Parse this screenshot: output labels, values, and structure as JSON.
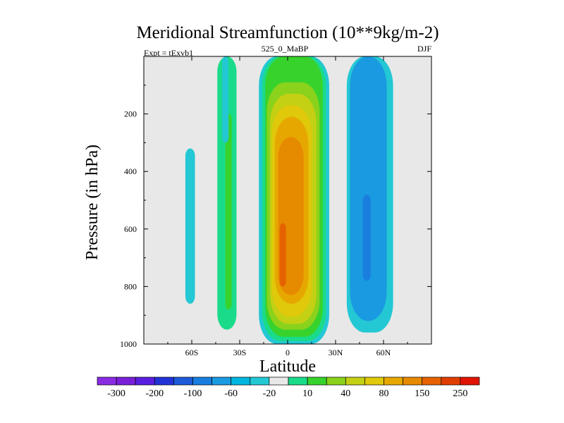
{
  "chart_data": {
    "type": "contour",
    "title": "Meridional Streamfunction (10**9kg/m-2)",
    "left_label": "Expt = tExvb1",
    "center_label": "525_0_MaBP",
    "right_label": "DJF",
    "xlabel": "Latitude",
    "ylabel": "Pressure (in hPa)",
    "xlim": [
      -90,
      90
    ],
    "ylim": [
      1000,
      0
    ],
    "x_ticks": [
      {
        "value": -60,
        "label": "60S"
      },
      {
        "value": -30,
        "label": "30S"
      },
      {
        "value": 0,
        "label": "0"
      },
      {
        "value": 30,
        "label": "30N"
      },
      {
        "value": 60,
        "label": "60N"
      }
    ],
    "y_ticks": [
      {
        "value": 200,
        "label": "200"
      },
      {
        "value": 400,
        "label": "400"
      },
      {
        "value": 600,
        "label": "600"
      },
      {
        "value": 800,
        "label": "800"
      },
      {
        "value": 1000,
        "label": "1000"
      }
    ],
    "background_color": "#e8e8e8",
    "colorbar": {
      "colors": [
        "#8a2be2",
        "#7a1fd8",
        "#5a1ee0",
        "#2233d6",
        "#1d5ad8",
        "#1a7edf",
        "#1a9ae0",
        "#00b5de",
        "#23c8d4",
        "#e8e8e8",
        "#1adb8a",
        "#38d22d",
        "#8ad21c",
        "#c4d014",
        "#e0c80a",
        "#e6a800",
        "#e68a00",
        "#e66200",
        "#e03e00",
        "#e01400"
      ],
      "labels": [
        {
          "after_index": 0,
          "text": "-300"
        },
        {
          "after_index": 2,
          "text": "-200"
        },
        {
          "after_index": 4,
          "text": "-100"
        },
        {
          "after_index": 6,
          "text": "-60"
        },
        {
          "after_index": 8,
          "text": "-20"
        },
        {
          "after_index": 10,
          "text": "10"
        },
        {
          "after_index": 12,
          "text": "40"
        },
        {
          "after_index": 14,
          "text": "80"
        },
        {
          "after_index": 16,
          "text": "150"
        },
        {
          "after_index": 18,
          "text": "250"
        }
      ]
    },
    "cells": [
      {
        "name": "sh-polar-weak-cell",
        "level_color": "#23c8d4",
        "lat": [
          -64,
          -58
        ],
        "p": [
          320,
          860
        ]
      },
      {
        "name": "sh-ferrel-outer",
        "level_color": "#1adb8a",
        "lat": [
          -44,
          -32
        ],
        "p": [
          0,
          950
        ]
      },
      {
        "name": "sh-ferrel-inner",
        "level_color": "#38d22d",
        "lat": [
          -39,
          -35
        ],
        "p": [
          200,
          880
        ]
      },
      {
        "name": "sh-ferrel-top",
        "level_color": "#23c8d4",
        "lat": [
          -41,
          -37
        ],
        "p": [
          0,
          300
        ]
      },
      {
        "name": "hadley-outline",
        "level_color": "#23c8d4",
        "lat": [
          -18,
          26
        ],
        "p": [
          0,
          1000
        ]
      },
      {
        "name": "hadley-level-10",
        "level_color": "#1adb8a",
        "lat": [
          -16,
          24
        ],
        "p": [
          0,
          990
        ]
      },
      {
        "name": "hadley-level-40",
        "level_color": "#38d22d",
        "lat": [
          -14,
          22
        ],
        "p": [
          0,
          975
        ]
      },
      {
        "name": "hadley-level-80",
        "level_color": "#8ad21c",
        "lat": [
          -13,
          20
        ],
        "p": [
          90,
          950
        ]
      },
      {
        "name": "hadley-level-100",
        "level_color": "#c4d014",
        "lat": [
          -11,
          18
        ],
        "p": [
          130,
          930
        ]
      },
      {
        "name": "hadley-level-130",
        "level_color": "#e0c80a",
        "lat": [
          -10,
          15
        ],
        "p": [
          170,
          905
        ]
      },
      {
        "name": "hadley-level-150",
        "level_color": "#e6a800",
        "lat": [
          -8,
          13
        ],
        "p": [
          210,
          860
        ]
      },
      {
        "name": "hadley-level-200",
        "level_color": "#e68a00",
        "lat": [
          -6,
          10
        ],
        "p": [
          280,
          830
        ]
      },
      {
        "name": "hadley-level-250",
        "level_color": "#e66200",
        "lat": [
          -5,
          -1
        ],
        "p": [
          580,
          800
        ]
      },
      {
        "name": "nh-ferrel-outer",
        "level_color": "#23c8d4",
        "lat": [
          37,
          66
        ],
        "p": [
          0,
          960
        ]
      },
      {
        "name": "nh-ferrel-mid",
        "level_color": "#1a9ae0",
        "lat": [
          39,
          62
        ],
        "p": [
          0,
          920
        ]
      },
      {
        "name": "nh-ferrel-core",
        "level_color": "#1a7edf",
        "lat": [
          47,
          52
        ],
        "p": [
          480,
          780
        ]
      }
    ]
  }
}
